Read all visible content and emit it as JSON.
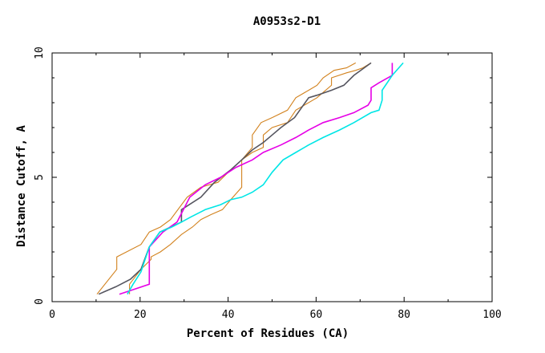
{
  "chart_data": {
    "type": "line",
    "title": "A0953s2-D1",
    "xlabel": "Percent of Residues (CA)",
    "ylabel": "Distance Cutoff, A",
    "xlim": [
      0,
      100
    ],
    "ylim": [
      0,
      10
    ],
    "x_ticks": [
      "0",
      "20",
      "40",
      "60",
      "80",
      "100"
    ],
    "y_ticks": [
      "0",
      "5",
      "10"
    ],
    "grid": false,
    "series": [
      {
        "name": "orange-upper",
        "color": "#d2821e",
        "x": [
          10.2,
          14.7,
          14.7,
          20.2,
          22.1,
          24.6,
          26.9,
          30.7,
          33.8,
          37.7,
          40.6,
          43.1,
          45.5,
          45.5,
          47.5,
          50.0,
          53.5,
          55.4,
          58.3,
          60.2,
          61.6,
          64.1,
          66.9,
          69.0
        ],
        "y": [
          0.3,
          1.3,
          1.8,
          2.3,
          2.8,
          3.0,
          3.3,
          4.2,
          4.6,
          4.8,
          5.3,
          5.7,
          6.2,
          6.7,
          7.2,
          7.4,
          7.7,
          8.2,
          8.5,
          8.7,
          9.0,
          9.3,
          9.4,
          9.6
        ]
      },
      {
        "name": "orange-lower",
        "color": "#d2821e",
        "x": [
          17.6,
          17.6,
          20.2,
          22.5,
          22.5,
          24.6,
          26.9,
          29.4,
          31.9,
          33.8,
          36.1,
          38.7,
          40.6,
          43.1,
          43.1,
          45.5,
          48.0,
          48.0,
          50.0,
          53.5,
          55.4,
          60.2,
          63.5,
          63.5,
          66.9,
          69.0,
          70.6,
          72.5
        ],
        "y": [
          0.3,
          0.7,
          1.3,
          1.7,
          1.8,
          2.0,
          2.3,
          2.7,
          3.0,
          3.3,
          3.5,
          3.7,
          4.1,
          4.6,
          5.7,
          6.0,
          6.2,
          6.7,
          7.0,
          7.2,
          7.7,
          8.2,
          8.7,
          9.0,
          9.2,
          9.3,
          9.4,
          9.6
        ]
      },
      {
        "name": "gray",
        "color": "#55555f",
        "x": [
          10.6,
          14.5,
          17.8,
          20.2,
          22.1,
          24.5,
          29.4,
          29.4,
          33.8,
          36.9,
          40.6,
          43.1,
          45.5,
          48.0,
          50.0,
          52.0,
          55.1,
          58.3,
          60.2,
          63.5,
          66.3,
          68.6,
          72.5
        ],
        "y": [
          0.3,
          0.6,
          0.9,
          1.3,
          2.2,
          2.8,
          3.2,
          3.7,
          4.2,
          4.8,
          5.3,
          5.7,
          6.1,
          6.4,
          6.7,
          7.0,
          7.4,
          8.2,
          8.3,
          8.5,
          8.7,
          9.1,
          9.6
        ]
      },
      {
        "name": "magenta",
        "color": "#e600e6",
        "x": [
          15.3,
          22.1,
          22.1,
          25.2,
          28.4,
          31.3,
          34.8,
          38.3,
          41.8,
          45.5,
          48.0,
          52.0,
          55.4,
          58.3,
          61.6,
          65.3,
          68.6,
          71.8,
          72.5,
          72.5,
          74.3,
          77.3,
          77.3
        ],
        "y": [
          0.3,
          0.7,
          2.2,
          2.8,
          3.2,
          4.2,
          4.7,
          5.0,
          5.4,
          5.7,
          6.0,
          6.3,
          6.6,
          6.9,
          7.2,
          7.4,
          7.6,
          7.9,
          8.1,
          8.6,
          8.8,
          9.1,
          9.6
        ]
      },
      {
        "name": "cyan",
        "color": "#00e6e6",
        "x": [
          17.1,
          18.4,
          20.2,
          22.1,
          24.5,
          27.2,
          29.4,
          31.5,
          34.8,
          38.3,
          40.6,
          43.1,
          45.5,
          48.0,
          50.0,
          52.5,
          55.4,
          58.3,
          61.6,
          65.3,
          68.6,
          72.5,
          74.3,
          75.0,
          75.0,
          77.3,
          79.8
        ],
        "y": [
          0.3,
          0.7,
          1.2,
          2.2,
          2.8,
          3.0,
          3.2,
          3.4,
          3.7,
          3.9,
          4.1,
          4.2,
          4.4,
          4.7,
          5.2,
          5.7,
          6.0,
          6.3,
          6.6,
          6.9,
          7.2,
          7.6,
          7.7,
          8.1,
          8.5,
          9.1,
          9.6
        ]
      }
    ]
  }
}
